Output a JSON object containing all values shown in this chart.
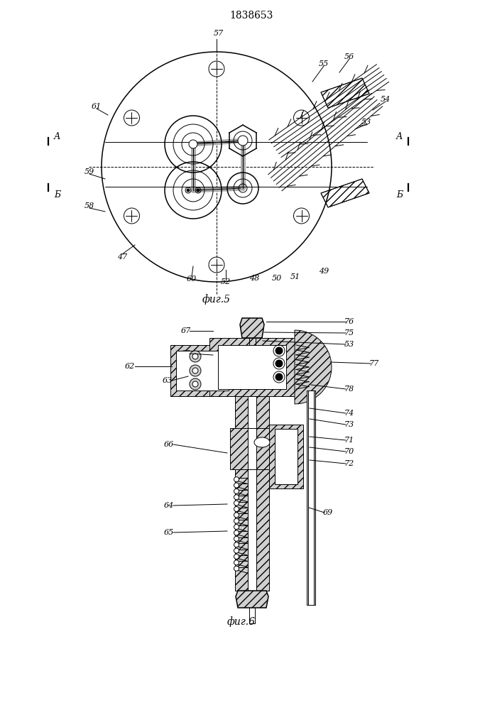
{
  "title": "1838653",
  "fig5_label": "фиг.5",
  "fig6_label": "фиг.6",
  "bg_color": "#ffffff",
  "line_color": "#000000",
  "figsize": [
    7.07,
    10.0
  ],
  "dpi": 100
}
